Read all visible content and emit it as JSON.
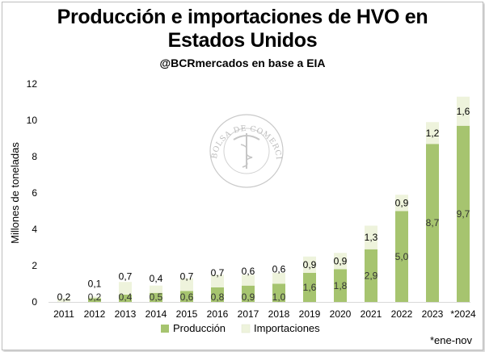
{
  "chart_data": {
    "type": "bar",
    "stacked": true,
    "title_line1": "Producción e importaciones de HVO en",
    "title_line2": "Estados Unidos",
    "subtitle": "@BCRmercados en base a EIA",
    "ylabel": "Millones de toneladas",
    "ylim": [
      0,
      12
    ],
    "yticks": [
      "0",
      "2",
      "4",
      "6",
      "8",
      "10",
      "12"
    ],
    "ytick_values": [
      0,
      2,
      4,
      6,
      8,
      10,
      12
    ],
    "categories": [
      "2011",
      "2012",
      "2013",
      "2014",
      "2015",
      "2016",
      "2017",
      "2018",
      "2019",
      "2020",
      "2021",
      "2022",
      "2023",
      "*2024"
    ],
    "series": [
      {
        "name": "Producción",
        "color": "#a6c46f",
        "values": [
          0.0,
          0.2,
          0.4,
          0.5,
          0.6,
          0.8,
          0.9,
          1.0,
          1.6,
          1.8,
          2.9,
          5.0,
          8.7,
          9.7
        ],
        "labels": [
          "",
          "0,2",
          "0,4",
          "0,5",
          "0,6",
          "0,8",
          "0,9",
          "1,0",
          "1,6",
          "1,8",
          "2,9",
          "5,0",
          "8,7",
          "9,7"
        ]
      },
      {
        "name": "Importaciones",
        "color": "#eef3dc",
        "values": [
          0.2,
          0.1,
          0.7,
          0.4,
          0.7,
          0.7,
          0.6,
          0.6,
          0.9,
          0.9,
          1.3,
          0.9,
          1.2,
          1.6
        ],
        "labels": [
          "0,2",
          "0,1",
          "0,7",
          "0,4",
          "0,7",
          "0,7",
          "0,6",
          "0,6",
          "0,9",
          "0,9",
          "1,3",
          "0,9",
          "1,2",
          "1,6"
        ]
      }
    ],
    "legend_position": "bottom",
    "grid": false,
    "footnote": "*ene-nov",
    "watermark_text": "BOLSA DE COMERCIO DE ROSARIO"
  }
}
